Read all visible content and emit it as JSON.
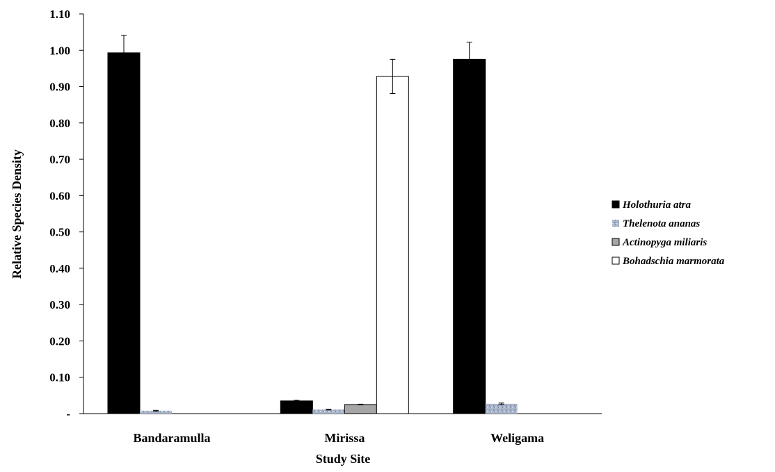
{
  "chart_data": {
    "type": "bar",
    "title": "",
    "xlabel": "Study Site",
    "ylabel": "Relative Species Density",
    "ylim": [
      0,
      1.1
    ],
    "yticks": [
      0,
      0.1,
      0.2,
      0.3,
      0.4,
      0.5,
      0.6,
      0.7,
      0.8,
      0.9,
      1.0,
      1.1
    ],
    "ytick_labels": [
      "-",
      "0.10",
      "0.20",
      "0.30",
      "0.40",
      "0.50",
      "0.60",
      "0.70",
      "0.80",
      "0.90",
      "1.00",
      "1.10"
    ],
    "categories": [
      "Bandaramulla",
      "Mirissa",
      "Weligama"
    ],
    "grid": false,
    "legend_position": "right",
    "series": [
      {
        "name": "Holothuria atra",
        "color": "#000000",
        "values": [
          0.993,
          0.035,
          0.975
        ],
        "errors": [
          0.048,
          0.002,
          0.047
        ]
      },
      {
        "name": "Thelenota ananas",
        "color": "#a9b6cc",
        "values": [
          0.008,
          0.011,
          0.027
        ],
        "errors": [
          0.001,
          0.001,
          0.002
        ]
      },
      {
        "name": "Actinopyga miliaris",
        "color": "#a6a6a6",
        "values": [
          0,
          0.025,
          0
        ],
        "errors": [
          0,
          0.001,
          0
        ]
      },
      {
        "name": "Bohadschia marmorata",
        "color": "#ffffff",
        "values": [
          0,
          0.928,
          0
        ],
        "errors": [
          0,
          0.047,
          0
        ]
      }
    ]
  }
}
